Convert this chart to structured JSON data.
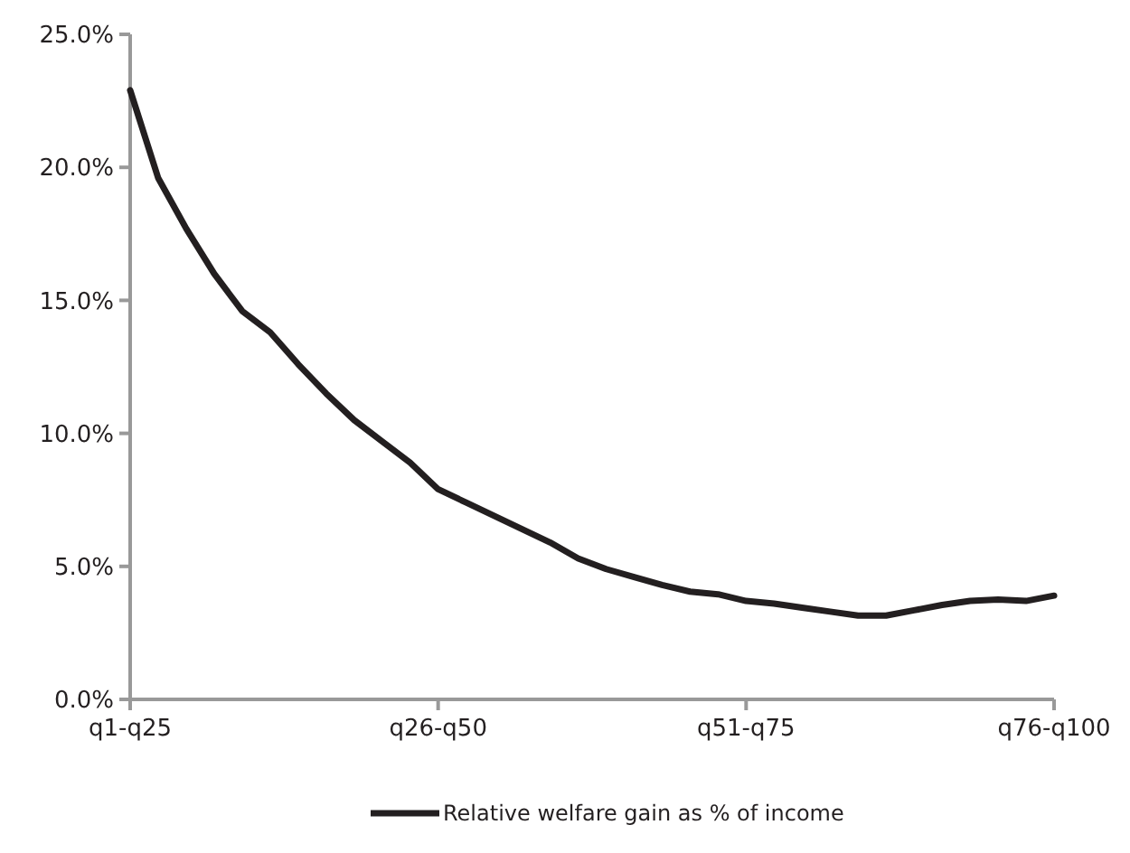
{
  "chart_data": {
    "type": "line",
    "categories": [
      "q1-q25",
      null,
      null,
      null,
      null,
      null,
      null,
      null,
      null,
      null,
      null,
      "q26-q50",
      null,
      null,
      null,
      null,
      null,
      null,
      null,
      null,
      null,
      null,
      "q51-q75",
      null,
      null,
      null,
      null,
      null,
      null,
      null,
      null,
      null,
      null,
      "q76-q100"
    ],
    "ylim": [
      0,
      25
    ],
    "yticks": [
      {
        "value": 0,
        "label": "0.0%"
      },
      {
        "value": 5,
        "label": "5.0%"
      },
      {
        "value": 10,
        "label": "10.0%"
      },
      {
        "value": 15,
        "label": "15.0%"
      },
      {
        "value": 20,
        "label": "20.0%"
      },
      {
        "value": 25,
        "label": "25.0%"
      }
    ],
    "grid": false,
    "legend": "bottom",
    "marker": "none",
    "line_style": "solid",
    "series": [
      {
        "name": "Relative welfare gain as % of income",
        "color": "#231f20",
        "values": [
          22.9,
          19.6,
          17.7,
          16,
          14.6,
          13.8,
          12.6,
          11.5,
          10.5,
          9.7,
          8.9,
          7.9,
          7.4,
          6.9,
          6.4,
          5.9,
          5.3,
          4.9,
          4.6,
          4.3,
          4.05,
          3.95,
          3.7,
          3.6,
          3.45,
          3.3,
          3.15,
          3.15,
          3.35,
          3.55,
          3.7,
          3.75,
          3.7,
          3.9
        ]
      }
    ]
  }
}
